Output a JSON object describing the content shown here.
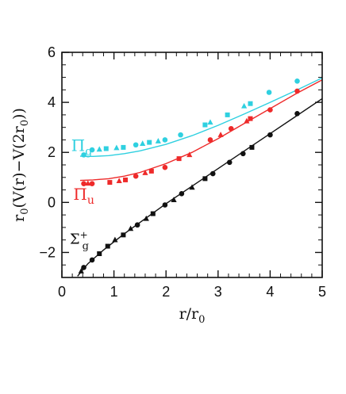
{
  "chart_data": {
    "type": "scatter",
    "title": "",
    "xlabel_main": "r/r",
    "xlabel_sub": "0",
    "ylabel_parts": [
      "r",
      "0",
      "(V(r)−V(2r",
      "0",
      "))"
    ],
    "xlim": [
      0,
      5
    ],
    "ylim": [
      -3,
      6
    ],
    "xticks": [
      0,
      1,
      2,
      3,
      4,
      5
    ],
    "yticks": [
      -2,
      0,
      2,
      4,
      6
    ],
    "ytick_labels": [
      "−2",
      "0",
      "2",
      "4",
      "6"
    ],
    "grid": false,
    "series": [
      {
        "name_main": "Π",
        "name_sub": "g",
        "name_sup": "",
        "color": "#2fd0e0",
        "points": [
          {
            "x": 0.42,
            "y": 1.9,
            "m": "circle"
          },
          {
            "x": 0.58,
            "y": 2.1,
            "m": "circle"
          },
          {
            "x": 0.85,
            "y": 2.15,
            "m": "square"
          },
          {
            "x": 1.18,
            "y": 2.2,
            "m": "square"
          },
          {
            "x": 1.42,
            "y": 2.3,
            "m": "circle"
          },
          {
            "x": 1.68,
            "y": 2.4,
            "m": "square"
          },
          {
            "x": 1.98,
            "y": 2.5,
            "m": "circle"
          },
          {
            "x": 2.28,
            "y": 2.7,
            "m": "circle"
          },
          {
            "x": 2.75,
            "y": 3.1,
            "m": "square"
          },
          {
            "x": 3.18,
            "y": 3.5,
            "m": "square"
          },
          {
            "x": 3.62,
            "y": 3.95,
            "m": "square"
          },
          {
            "x": 3.98,
            "y": 4.4,
            "m": "circle"
          },
          {
            "x": 4.52,
            "y": 4.85,
            "m": "circle"
          },
          {
            "x": 0.72,
            "y": 2.12,
            "m": "triangle"
          },
          {
            "x": 1.05,
            "y": 2.18,
            "m": "triangle"
          },
          {
            "x": 1.55,
            "y": 2.35,
            "m": "triangle"
          },
          {
            "x": 1.85,
            "y": 2.45,
            "m": "triangle"
          },
          {
            "x": 2.85,
            "y": 3.2,
            "m": "triangle"
          },
          {
            "x": 3.5,
            "y": 3.85,
            "m": "triangle"
          }
        ],
        "curve_x": [
          0.35,
          0.6,
          0.9,
          1.2,
          1.5,
          2.0,
          2.5,
          3.0,
          3.5,
          4.0,
          4.5,
          5.0
        ],
        "curve_y": [
          1.85,
          1.84,
          1.87,
          1.95,
          2.06,
          2.32,
          2.67,
          3.08,
          3.53,
          4.0,
          4.48,
          4.98
        ]
      },
      {
        "name_main": "Π",
        "name_sub": "u",
        "name_sup": "",
        "color": "#ee2a2a",
        "points": [
          {
            "x": 0.42,
            "y": 0.75,
            "m": "circle"
          },
          {
            "x": 0.58,
            "y": 0.75,
            "m": "circle"
          },
          {
            "x": 0.92,
            "y": 0.8,
            "m": "square"
          },
          {
            "x": 1.22,
            "y": 0.9,
            "m": "square"
          },
          {
            "x": 1.42,
            "y": 1.05,
            "m": "circle"
          },
          {
            "x": 1.72,
            "y": 1.25,
            "m": "square"
          },
          {
            "x": 1.98,
            "y": 1.4,
            "m": "circle"
          },
          {
            "x": 2.25,
            "y": 1.75,
            "m": "square"
          },
          {
            "x": 2.85,
            "y": 2.5,
            "m": "circle"
          },
          {
            "x": 3.25,
            "y": 2.95,
            "m": "circle"
          },
          {
            "x": 3.62,
            "y": 3.35,
            "m": "square"
          },
          {
            "x": 4.0,
            "y": 3.7,
            "m": "circle"
          },
          {
            "x": 4.52,
            "y": 4.45,
            "m": "circle"
          },
          {
            "x": 0.5,
            "y": 0.76,
            "m": "triangle"
          },
          {
            "x": 1.1,
            "y": 0.86,
            "m": "triangle"
          },
          {
            "x": 1.6,
            "y": 1.18,
            "m": "triangle"
          },
          {
            "x": 2.45,
            "y": 1.9,
            "m": "triangle"
          },
          {
            "x": 3.05,
            "y": 2.7,
            "m": "triangle"
          },
          {
            "x": 3.55,
            "y": 3.25,
            "m": "triangle"
          }
        ],
        "curve_x": [
          0.35,
          0.6,
          0.9,
          1.2,
          1.5,
          2.0,
          2.5,
          3.0,
          3.5,
          4.0,
          4.5,
          5.0
        ],
        "curve_y": [
          0.88,
          0.9,
          0.95,
          1.05,
          1.2,
          1.55,
          2.0,
          2.55,
          3.15,
          3.75,
          4.35,
          4.9
        ]
      },
      {
        "name_main": "Σ",
        "name_sub": "g",
        "name_sup": "+",
        "color": "#111111",
        "points": [
          {
            "x": 0.37,
            "y": -2.75,
            "m": "triangle"
          },
          {
            "x": 0.42,
            "y": -2.6,
            "m": "circle"
          },
          {
            "x": 0.58,
            "y": -2.3,
            "m": "circle"
          },
          {
            "x": 0.72,
            "y": -2.05,
            "m": "square"
          },
          {
            "x": 0.88,
            "y": -1.75,
            "m": "square"
          },
          {
            "x": 1.02,
            "y": -1.5,
            "m": "triangle"
          },
          {
            "x": 1.18,
            "y": -1.3,
            "m": "square"
          },
          {
            "x": 1.32,
            "y": -1.05,
            "m": "triangle"
          },
          {
            "x": 1.45,
            "y": -0.9,
            "m": "circle"
          },
          {
            "x": 1.62,
            "y": -0.65,
            "m": "triangle"
          },
          {
            "x": 1.75,
            "y": -0.45,
            "m": "square"
          },
          {
            "x": 1.98,
            "y": -0.1,
            "m": "circle"
          },
          {
            "x": 2.15,
            "y": 0.1,
            "m": "triangle"
          },
          {
            "x": 2.3,
            "y": 0.35,
            "m": "circle"
          },
          {
            "x": 2.5,
            "y": 0.6,
            "m": "triangle"
          },
          {
            "x": 2.75,
            "y": 0.95,
            "m": "square"
          },
          {
            "x": 2.9,
            "y": 1.15,
            "m": "circle"
          },
          {
            "x": 3.22,
            "y": 1.6,
            "m": "circle"
          },
          {
            "x": 3.48,
            "y": 1.95,
            "m": "circle"
          },
          {
            "x": 3.65,
            "y": 2.2,
            "m": "square"
          },
          {
            "x": 4.0,
            "y": 2.7,
            "m": "circle"
          },
          {
            "x": 4.52,
            "y": 3.55,
            "m": "circle"
          }
        ],
        "curve_x": [
          0.3,
          0.5,
          0.8,
          1.2,
          1.6,
          2.0,
          2.5,
          3.0,
          3.5,
          4.0,
          4.5,
          5.0
        ],
        "curve_y": [
          -2.95,
          -2.45,
          -1.9,
          -1.25,
          -0.65,
          -0.05,
          0.65,
          1.35,
          2.05,
          2.75,
          3.45,
          4.15
        ]
      }
    ]
  }
}
